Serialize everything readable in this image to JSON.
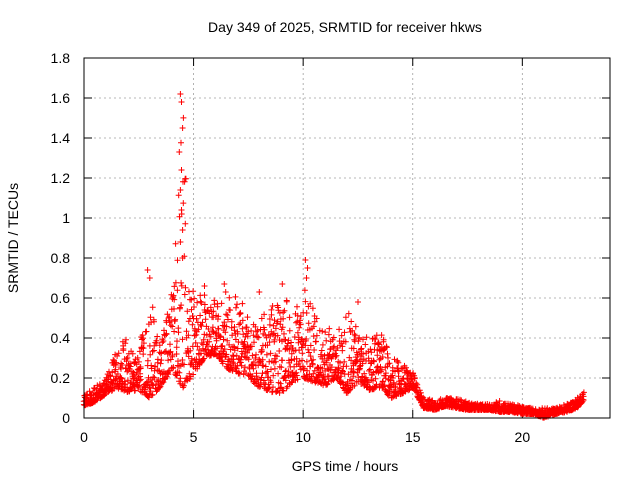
{
  "chart_data": {
    "type": "scatter",
    "title": "Day 349 of 2025, SRMTID for receiver hkws",
    "xlabel": "GPS time / hours",
    "ylabel": "SRMTID / TECUs",
    "xlim": [
      0,
      24
    ],
    "ylim": [
      0,
      1.8
    ],
    "x_ticks": [
      0,
      5,
      10,
      15,
      20
    ],
    "x_tick_labels": [
      "0",
      "5",
      "10",
      "15",
      "20"
    ],
    "y_ticks": [
      0,
      0.2,
      0.4,
      0.6,
      0.8,
      1,
      1.2,
      1.4,
      1.6,
      1.8
    ],
    "y_tick_labels": [
      "0",
      "0.2",
      "0.4",
      "0.6",
      "0.8",
      "1",
      "1.2",
      "1.4",
      "1.6",
      "1.8"
    ],
    "grid": true,
    "marker": "+",
    "marker_color": "#ff0000",
    "series": [
      {
        "name": "SRMTID",
        "envelope": {
          "x": [
            0,
            0.5,
            1,
            1.5,
            2,
            2.5,
            3,
            3.5,
            4,
            4.5,
            5,
            5.5,
            6,
            6.5,
            7,
            7.5,
            8,
            8.5,
            9,
            9.5,
            10,
            10.5,
            11,
            11.5,
            12,
            12.5,
            13,
            13.5,
            14,
            14.5,
            15,
            15.5,
            16,
            16.5,
            17,
            17.5,
            18,
            18.5,
            19,
            19.5,
            20,
            20.5,
            21,
            21.5,
            22,
            22.5,
            22.8
          ],
          "low": [
            0.06,
            0.08,
            0.12,
            0.15,
            0.13,
            0.14,
            0.1,
            0.15,
            0.25,
            0.15,
            0.22,
            0.3,
            0.32,
            0.25,
            0.22,
            0.2,
            0.15,
            0.13,
            0.12,
            0.18,
            0.2,
            0.18,
            0.16,
            0.2,
            0.12,
            0.18,
            0.14,
            0.15,
            0.1,
            0.12,
            0.15,
            0.05,
            0.04,
            0.06,
            0.05,
            0.04,
            0.04,
            0.04,
            0.03,
            0.03,
            0.02,
            0.02,
            0.0,
            0.02,
            0.03,
            0.05,
            0.09
          ],
          "high": [
            0.11,
            0.16,
            0.2,
            0.34,
            0.42,
            0.3,
            0.74,
            0.35,
            0.68,
            1.62,
            0.6,
            0.66,
            0.58,
            0.67,
            0.63,
            0.5,
            0.48,
            0.58,
            0.67,
            0.5,
            0.79,
            0.52,
            0.48,
            0.4,
            0.58,
            0.45,
            0.4,
            0.45,
            0.3,
            0.28,
            0.23,
            0.1,
            0.09,
            0.1,
            0.1,
            0.08,
            0.07,
            0.07,
            0.09,
            0.07,
            0.06,
            0.05,
            0.05,
            0.05,
            0.07,
            0.1,
            0.14
          ]
        },
        "peaks": [
          {
            "x": 4.4,
            "y": 1.62
          },
          {
            "x": 4.45,
            "y": 1.58
          },
          {
            "x": 4.5,
            "y": 1.45
          },
          {
            "x": 4.35,
            "y": 1.33
          },
          {
            "x": 4.45,
            "y": 1.24
          },
          {
            "x": 4.4,
            "y": 1.14
          },
          {
            "x": 4.45,
            "y": 1.04
          },
          {
            "x": 4.5,
            "y": 0.94
          },
          {
            "x": 4.4,
            "y": 0.88
          },
          {
            "x": 4.5,
            "y": 0.8
          },
          {
            "x": 2.9,
            "y": 0.74
          },
          {
            "x": 3.0,
            "y": 0.7
          },
          {
            "x": 10.1,
            "y": 0.79
          },
          {
            "x": 10.2,
            "y": 0.75
          },
          {
            "x": 10.15,
            "y": 0.7
          },
          {
            "x": 9.05,
            "y": 0.67
          },
          {
            "x": 6.4,
            "y": 0.67
          },
          {
            "x": 5.5,
            "y": 0.66
          },
          {
            "x": 12.5,
            "y": 0.58
          },
          {
            "x": 8.0,
            "y": 0.63
          }
        ]
      }
    ]
  }
}
